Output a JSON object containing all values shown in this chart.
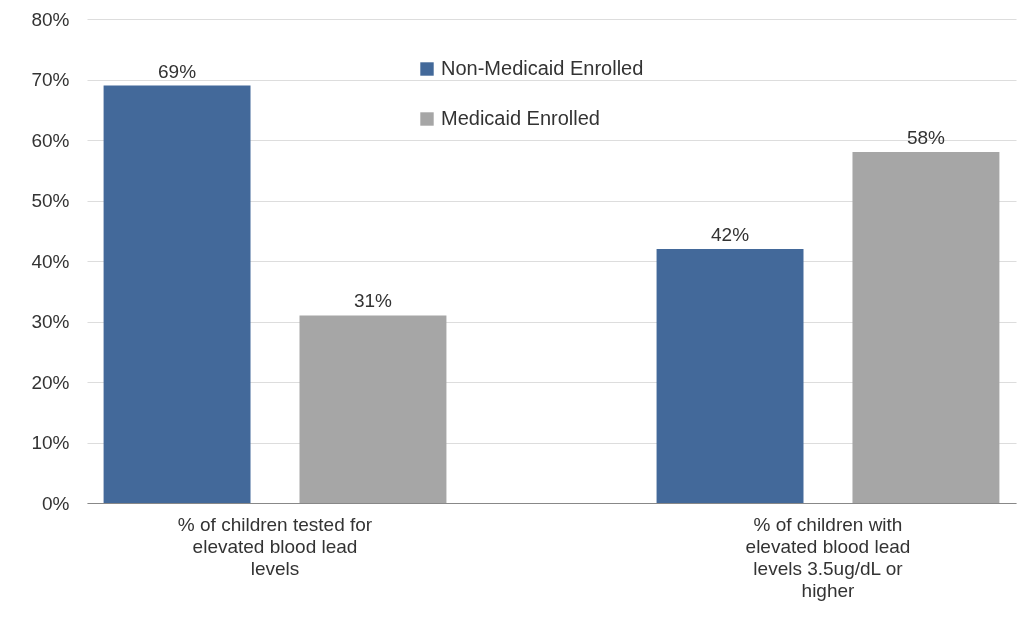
{
  "chart_data": {
    "type": "bar",
    "categories": [
      "% of children tested for elevated blood lead levels",
      "% of children with elevated blood lead levels 3.5ug/dL or higher"
    ],
    "series": [
      {
        "name": "Non-Medicaid Enrolled",
        "color": "#43699a",
        "values": [
          69,
          42
        ],
        "value_labels": [
          "69%",
          "42%"
        ]
      },
      {
        "name": "Medicaid Enrolled",
        "color": "#a6a6a6",
        "values": [
          31,
          58
        ],
        "value_labels": [
          "31%",
          "58%"
        ]
      }
    ],
    "ylim": [
      0,
      80
    ],
    "yticks": [
      {
        "value": 0,
        "label": "0%"
      },
      {
        "value": 10,
        "label": "10%"
      },
      {
        "value": 20,
        "label": "20%"
      },
      {
        "value": 30,
        "label": "30%"
      },
      {
        "value": 40,
        "label": "40%"
      },
      {
        "value": 50,
        "label": "50%"
      },
      {
        "value": 60,
        "label": "60%"
      },
      {
        "value": 70,
        "label": "70%"
      },
      {
        "value": 80,
        "label": "80%"
      }
    ],
    "grid": "y",
    "legend": "top"
  }
}
